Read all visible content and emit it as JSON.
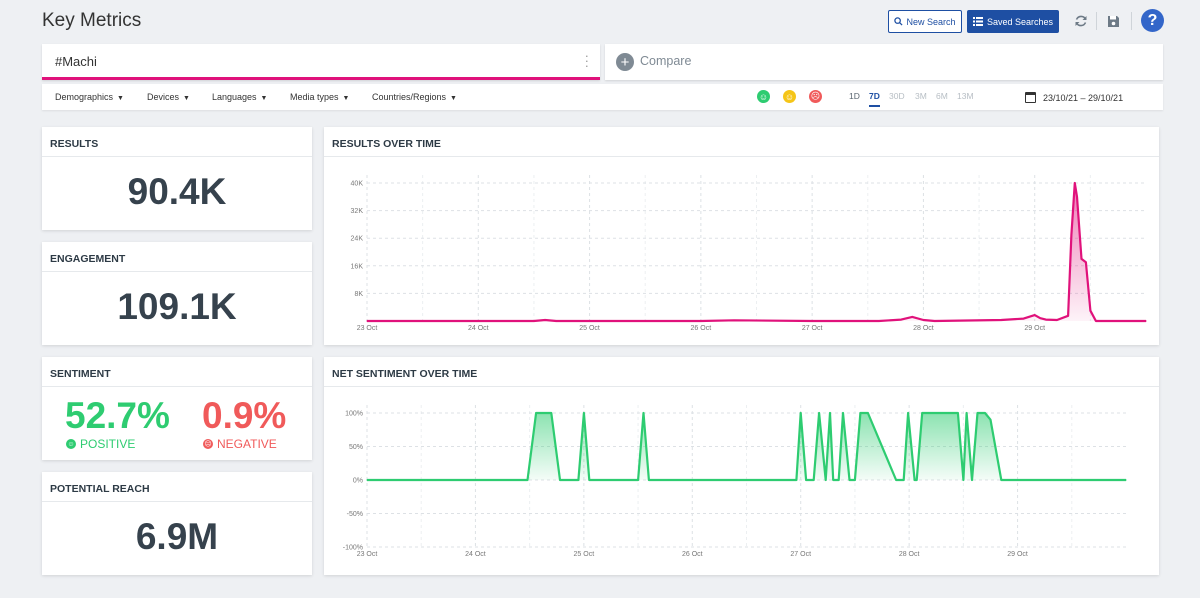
{
  "page": {
    "title": "Key Metrics"
  },
  "toolbar": {
    "new_search_label": "New Search",
    "saved_searches_label": "Saved Searches",
    "refresh_icon": "refresh-icon",
    "save_icon": "save-icon",
    "help_label": "?"
  },
  "search": {
    "query": "#Machi",
    "compare_label": "Compare"
  },
  "filters": {
    "items": [
      "Demographics",
      "Devices",
      "Languages",
      "Media types",
      "Countries/Regions"
    ],
    "sentiment_faces": [
      {
        "icon": "positive-face-icon",
        "color": "#2ecc71"
      },
      {
        "icon": "neutral-face-icon",
        "color": "#f5c518"
      },
      {
        "icon": "negative-face-icon",
        "color": "#f05a5a"
      }
    ],
    "ranges": [
      "1D",
      "7D",
      "30D",
      "3M",
      "6M",
      "13M"
    ],
    "active_range": "7D",
    "date_range": "23/10/21 – 29/10/21"
  },
  "metrics": {
    "results": {
      "label": "RESULTS",
      "value": "90.4K"
    },
    "engagement": {
      "label": "ENGAGEMENT",
      "value": "109.1K"
    },
    "sentiment": {
      "label": "SENTIMENT",
      "positive_value": "52.7%",
      "positive_label": "POSITIVE",
      "negative_value": "0.9%",
      "negative_label": "NEGATIVE",
      "positive_color": "#2ecc71",
      "negative_color": "#f05a5a"
    },
    "reach": {
      "label": "POTENTIAL REACH",
      "value": "6.9M"
    }
  },
  "colors": {
    "accent": "#e0127b",
    "brand": "#1e4fa3",
    "positive": "#2ecc71"
  },
  "chart_data": [
    {
      "type": "area",
      "title": "RESULTS OVER TIME",
      "x_ticks": [
        "23 Oct",
        "24 Oct",
        "25 Oct",
        "26 Oct",
        "27 Oct",
        "28 Oct",
        "29 Oct"
      ],
      "y_ticks": [
        "8K",
        "16K",
        "24K",
        "32K",
        "40K"
      ],
      "ylim": [
        0,
        40000
      ],
      "xlim": [
        0,
        7
      ],
      "grid": true,
      "color": "#e0127b",
      "series": [
        {
          "x": [
            0,
            1.5,
            1.6,
            1.7,
            2.5,
            3.0,
            3.3,
            4.0,
            4.6,
            4.8,
            4.9,
            5.0,
            5.1,
            5.7,
            5.9,
            6.0,
            6.05,
            6.1,
            6.2,
            6.3,
            6.33,
            6.36,
            6.38,
            6.42,
            6.46,
            6.5,
            6.55,
            6.6,
            6.7,
            7.0
          ],
          "y": [
            0,
            0,
            300,
            0,
            0,
            0,
            200,
            0,
            0,
            400,
            1200,
            300,
            0,
            300,
            700,
            1700,
            800,
            400,
            300,
            1500,
            25000,
            40000,
            36000,
            18000,
            17000,
            3000,
            0,
            0,
            0,
            0
          ]
        }
      ]
    },
    {
      "type": "area",
      "title": "NET SENTIMENT OVER TIME",
      "x_ticks": [
        "23 Oct",
        "24 Oct",
        "25 Oct",
        "26 Oct",
        "27 Oct",
        "28 Oct",
        "29 Oct"
      ],
      "y_ticks": [
        "100%",
        "50%",
        "0%",
        "-50%",
        "-100%"
      ],
      "ylim": [
        -100,
        100
      ],
      "xlim": [
        0,
        7
      ],
      "grid": true,
      "color": "#2ecc71",
      "series": [
        {
          "x": [
            0,
            1.48,
            1.56,
            1.7,
            1.78,
            1.95,
            2.0,
            2.05,
            2.5,
            2.55,
            2.6,
            3.96,
            4.0,
            4.05,
            4.12,
            4.17,
            4.23,
            4.27,
            4.3,
            4.35,
            4.39,
            4.45,
            4.5,
            4.55,
            4.62,
            4.88,
            4.95,
            4.99,
            5.05,
            5.07,
            5.12,
            5.45,
            5.5,
            5.53,
            5.58,
            5.63,
            5.7,
            5.75,
            5.85,
            7.0
          ],
          "y": [
            0,
            0,
            100,
            100,
            0,
            0,
            100,
            0,
            0,
            100,
            0,
            0,
            100,
            0,
            0,
            100,
            0,
            100,
            0,
            0,
            100,
            0,
            0,
            100,
            100,
            0,
            0,
            100,
            0,
            0,
            100,
            100,
            0,
            100,
            0,
            100,
            100,
            90,
            0,
            0
          ]
        }
      ]
    }
  ]
}
